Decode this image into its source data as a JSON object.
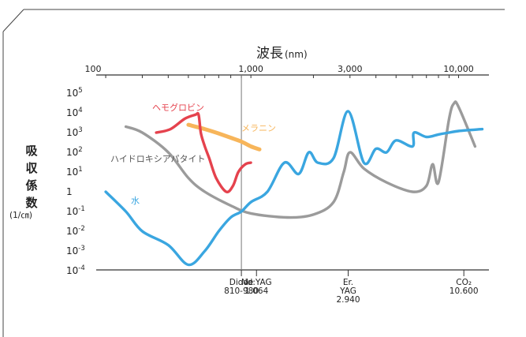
{
  "chart_data": {
    "type": "line",
    "title": "波長",
    "title_unit": "(nm)",
    "ylabel": "吸収係数",
    "ylabel_unit": "(1/㎝)",
    "x_scale": "log",
    "y_scale": "log",
    "xlim": [
      180,
      14000
    ],
    "ylim": [
      0.0001,
      100000
    ],
    "top_ticks": [
      {
        "value": 100,
        "label": "100"
      },
      {
        "value": 1000,
        "label": "1,000"
      },
      {
        "value": 3000,
        "label": "3,000"
      },
      {
        "value": 10000,
        "label": "10,000"
      }
    ],
    "y_ticks": [
      {
        "value": 100000,
        "base": "10",
        "exp": "5"
      },
      {
        "value": 10000,
        "base": "10",
        "exp": "4"
      },
      {
        "value": 1000,
        "base": "10",
        "exp": "3"
      },
      {
        "value": 100,
        "base": "10",
        "exp": "2"
      },
      {
        "value": 10,
        "base": "10",
        "exp": "1"
      },
      {
        "value": 1,
        "base": "1",
        "exp": ""
      },
      {
        "value": 0.1,
        "base": "10",
        "exp": "-1"
      },
      {
        "value": 0.01,
        "base": "10",
        "exp": "-2"
      },
      {
        "value": 0.001,
        "base": "10",
        "exp": "-3"
      },
      {
        "value": 0.0001,
        "base": "10",
        "exp": "-4"
      }
    ],
    "lasers": [
      {
        "value": 900,
        "lines": [
          "Diode",
          "810-980"
        ],
        "line": true
      },
      {
        "value": 1064,
        "lines": [
          "Nd:YAG",
          "1.064"
        ],
        "line": false
      },
      {
        "value": 2940,
        "lines": [
          "Er.",
          "YAG",
          "2.940"
        ],
        "line": false
      },
      {
        "value": 10600,
        "lines": [
          "CO₂",
          "10.600"
        ],
        "line": false
      }
    ],
    "series": [
      {
        "name": "ヘモグロビン",
        "color": "#e5424d",
        "points": [
          [
            350,
            1000
          ],
          [
            410,
            1500
          ],
          [
            480,
            5000
          ],
          [
            540,
            8000
          ],
          [
            560,
            8000
          ],
          [
            575,
            900
          ],
          [
            600,
            200
          ],
          [
            630,
            50
          ],
          [
            680,
            5
          ],
          [
            760,
            1
          ],
          [
            820,
            2
          ],
          [
            870,
            10
          ],
          [
            940,
            25
          ],
          [
            1000,
            30
          ]
        ]
      },
      {
        "name": "メラニン",
        "color": "#f7b55a",
        "points": [
          [
            500,
            2500
          ],
          [
            600,
            1500
          ],
          [
            700,
            900
          ],
          [
            800,
            550
          ],
          [
            900,
            350
          ],
          [
            1000,
            200
          ],
          [
            1100,
            140
          ]
        ]
      },
      {
        "name": "ハイドロキシアパタイト",
        "color": "#9b9b9b",
        "points": [
          [
            250,
            2000
          ],
          [
            300,
            1000
          ],
          [
            400,
            100
          ],
          [
            500,
            5
          ],
          [
            600,
            1
          ],
          [
            800,
            0.2
          ],
          [
            1000,
            0.08
          ],
          [
            1500,
            0.05
          ],
          [
            2000,
            0.07
          ],
          [
            2500,
            0.3
          ],
          [
            2800,
            10
          ],
          [
            3000,
            100
          ],
          [
            3500,
            15
          ],
          [
            4500,
            3
          ],
          [
            6000,
            1
          ],
          [
            7000,
            2
          ],
          [
            7500,
            25
          ],
          [
            8000,
            3
          ],
          [
            9000,
            5000
          ],
          [
            9500,
            30000
          ],
          [
            10000,
            20000
          ],
          [
            12000,
            200
          ]
        ]
      },
      {
        "name": "水",
        "color": "#3aa6e0",
        "points": [
          [
            200,
            1
          ],
          [
            250,
            0.1
          ],
          [
            300,
            0.01
          ],
          [
            400,
            0.002
          ],
          [
            500,
            0.0002
          ],
          [
            600,
            0.001
          ],
          [
            700,
            0.01
          ],
          [
            800,
            0.05
          ],
          [
            900,
            0.1
          ],
          [
            1000,
            0.3
          ],
          [
            1200,
            1
          ],
          [
            1450,
            30
          ],
          [
            1700,
            8
          ],
          [
            1900,
            100
          ],
          [
            2100,
            30
          ],
          [
            2500,
            50
          ],
          [
            2940,
            12000
          ],
          [
            3500,
            30
          ],
          [
            4000,
            150
          ],
          [
            4500,
            100
          ],
          [
            5000,
            400
          ],
          [
            6000,
            200
          ],
          [
            6100,
            1000
          ],
          [
            7000,
            600
          ],
          [
            8000,
            800
          ],
          [
            9000,
            1000
          ],
          [
            10000,
            1200
          ],
          [
            13000,
            1500
          ]
        ]
      }
    ]
  }
}
